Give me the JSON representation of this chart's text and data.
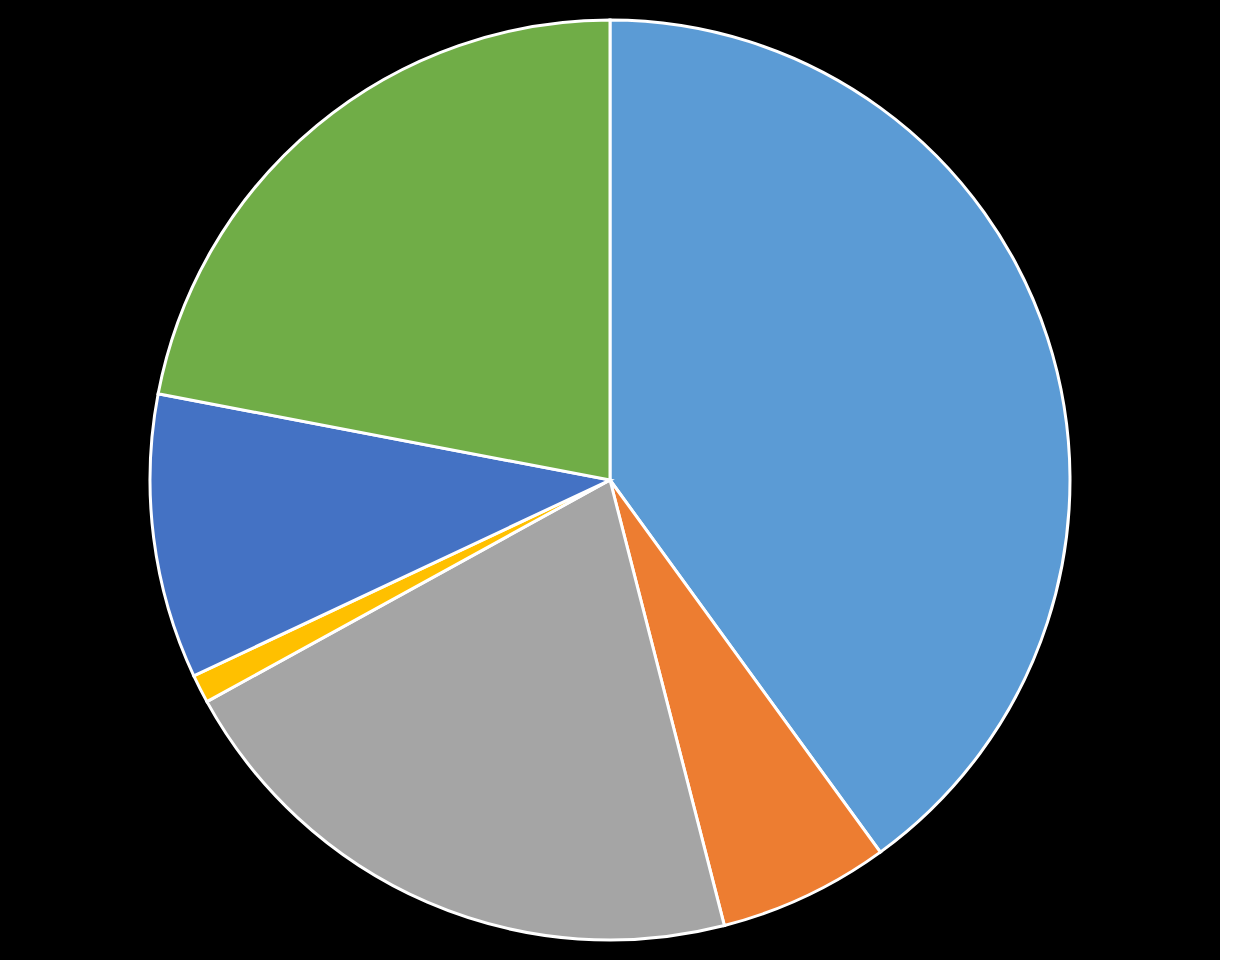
{
  "chart_data": {
    "type": "pie",
    "categories": [
      null,
      null,
      null,
      null,
      null,
      null
    ],
    "values": [
      40,
      6,
      21,
      1,
      10,
      22
    ],
    "colors": [
      "#5b9bd5",
      "#ed7d31",
      "#a5a5a5",
      "#ffc000",
      "#4472c4",
      "#70ad47"
    ],
    "legend": false
  }
}
